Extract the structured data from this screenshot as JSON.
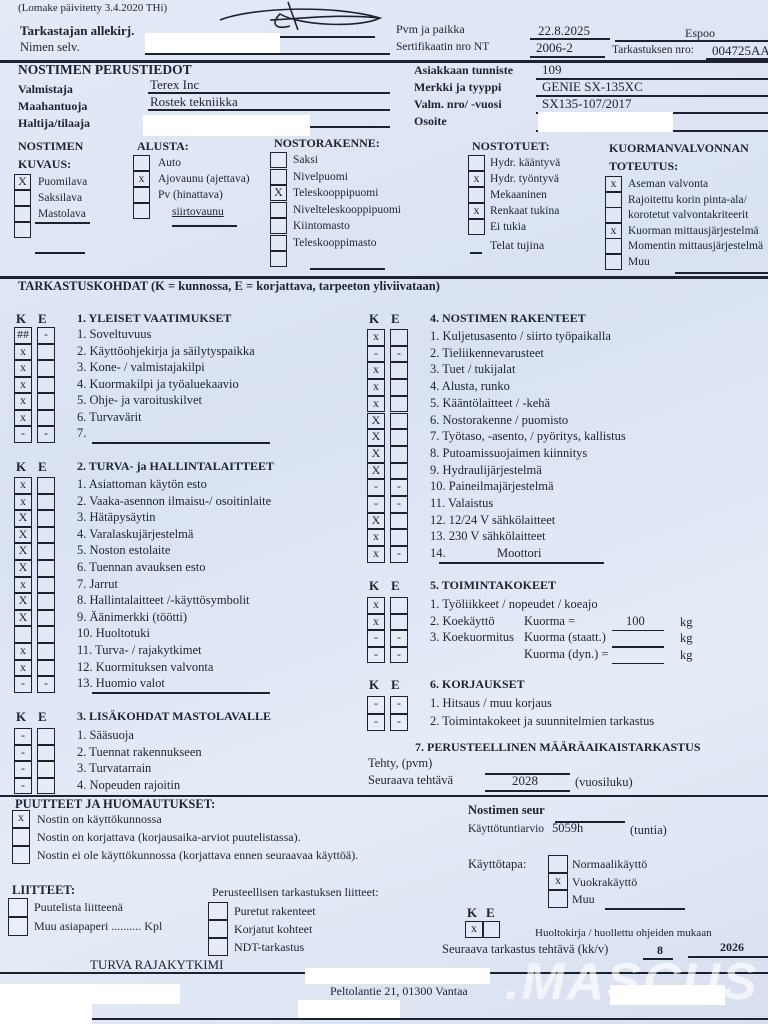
{
  "header": {
    "form_updated": "(Lomake päivitetty 3.4.2020 THi)",
    "signature_label": "Tarkastajan allekirj.",
    "name_label": "Nimen selv.",
    "date_place_label": "Pvm ja paikka",
    "date": "22.8.2025",
    "place": "Espoo",
    "cert_label": "Sertifikaatin nro NT",
    "cert_no": "2006-2",
    "inspection_no_label": "Tarkastuksen nro:",
    "inspection_no": "004725AA"
  },
  "basic": {
    "title": "NOSTIMEN PERUSTIEDOT",
    "manufacturer_label": "Valmistaja",
    "manufacturer": "Terex Inc",
    "importer_label": "Maahantuoja",
    "importer": "Rostek tekniikka",
    "owner_label": "Haltija/tilaaja",
    "customer_id_label": "Asiakkaan tunniste",
    "customer_id": "109",
    "make_label": "Merkki ja tyyppi",
    "make": "GENIE SX-135XC",
    "serial_label": "Valm. nro/ -vuosi",
    "serial": "SX135-107/2017",
    "address_label": "Osoite"
  },
  "groups": [
    {
      "title": [
        "NOSTIMEN",
        "KUVAUS:"
      ],
      "items": [
        {
          "m": "X",
          "l": "Puomilava"
        },
        {
          "m": "",
          "l": "Saksilava"
        },
        {
          "m": "",
          "l": "Mastolava"
        },
        {
          "m": "",
          "l": ""
        }
      ]
    },
    {
      "title": [
        "ALUSTA:"
      ],
      "items": [
        {
          "m": "",
          "l": "Auto"
        },
        {
          "m": "x",
          "l": "Ajovaunu (ajettava)"
        },
        {
          "m": "",
          "l": "Pv (hinattava)"
        },
        {
          "m": "",
          "l": "siirtovaunu"
        }
      ]
    },
    {
      "title": [
        "NOSTORAKENNE:"
      ],
      "items": [
        {
          "m": "",
          "l": "Saksi"
        },
        {
          "m": "",
          "l": "Nivelpuomi"
        },
        {
          "m": "X",
          "l": "Teleskooppipuomi"
        },
        {
          "m": "",
          "l": "Nivelteleskooppipuomi"
        },
        {
          "m": "",
          "l": "Kiintomasto"
        },
        {
          "m": "",
          "l": "Teleskooppimasto"
        },
        {
          "m": "",
          "l": ""
        }
      ]
    },
    {
      "title": [
        "NOSTOTUET:"
      ],
      "items": [
        {
          "m": "",
          "l": "Hydr. kääntyvä"
        },
        {
          "m": "x",
          "l": "Hydr. työntyvä"
        },
        {
          "m": "",
          "l": "Mekaaninen"
        },
        {
          "m": "x",
          "l": "Renkaat tukina"
        },
        {
          "m": "",
          "l": "Ei tukia"
        }
      ],
      "extra": "Telat tujina"
    },
    {
      "title": [
        "KUORMANVALVONNAN",
        "TOTEUTUS:"
      ],
      "items": [
        {
          "m": "x",
          "l": "Aseman valvonta"
        },
        {
          "m": "",
          "l": "Rajoitettu korin pinta-ala/"
        },
        {
          "m": "",
          "l": "korotetut valvontakriteerit"
        },
        {
          "m": "x",
          "l": "Kuorman mittausjärjestelmä"
        },
        {
          "m": "",
          "l": "Momentin mittausjärjestelmä"
        },
        {
          "m": "",
          "l": "Muu"
        }
      ]
    }
  ],
  "inspection_title": "TARKASTUSKOHDAT (K = kunnossa, E = korjattava, tarpeeton yliviivataan)",
  "col_k": "K",
  "col_e": "E",
  "sections": [
    {
      "title": "1. YLEISET VAATIMUKSET",
      "items": [
        {
          "k": "##",
          "e": "-",
          "l": "1. Soveltuvuus"
        },
        {
          "k": "x",
          "e": "",
          "l": "2. Käyttöohjekirja ja säilytyspaikka"
        },
        {
          "k": "x",
          "e": "",
          "l": "3. Kone- / valmistajakilpi"
        },
        {
          "k": "x",
          "e": "",
          "l": "4. Kuormakilpi ja työaluekaavio"
        },
        {
          "k": "x",
          "e": "",
          "l": "5. Ohje- ja varoituskilvet"
        },
        {
          "k": "x",
          "e": "",
          "l": "6. Turvavärit"
        },
        {
          "k": "-",
          "e": "-",
          "l": "7."
        }
      ]
    },
    {
      "title": "2. TURVA- ja HALLINTALAITTEET",
      "items": [
        {
          "k": "x",
          "e": "",
          "l": "1. Asiattoman käytön esto"
        },
        {
          "k": "x",
          "e": "",
          "l": "2. Vaaka-asennon ilmaisu-/ osoitinlaite"
        },
        {
          "k": "X",
          "e": "",
          "l": "3. Hätäpysäytin"
        },
        {
          "k": "X",
          "e": "",
          "l": "4. Varalaskujärjestelmä"
        },
        {
          "k": "X",
          "e": "",
          "l": "5. Noston estolaite"
        },
        {
          "k": "X",
          "e": "",
          "l": "6. Tuennan avauksen esto"
        },
        {
          "k": "x",
          "e": "",
          "l": "7. Jarrut"
        },
        {
          "k": "X",
          "e": "",
          "l": "8. Hallintalaitteet /-käyttösymbolit"
        },
        {
          "k": "X",
          "e": "",
          "l": "9. Äänimerkki (töötti)"
        },
        {
          "k": "",
          "e": "",
          "l": "10. Huoltotuki"
        },
        {
          "k": "x",
          "e": "",
          "l": "11. Turva- / rajakytkimet"
        },
        {
          "k": "x",
          "e": "",
          "l": "12. Kuormituksen valvonta"
        },
        {
          "k": "-",
          "e": "-",
          "l": "13. Huomio valot"
        }
      ]
    },
    {
      "title": "3. LISÄKOHDAT MASTOLAVALLE",
      "items": [
        {
          "k": "-",
          "e": "",
          "l": "1. Sääsuoja"
        },
        {
          "k": "-",
          "e": "",
          "l": "2. Tuennat rakennukseen"
        },
        {
          "k": "-",
          "e": "",
          "l": "3. Turvatarrain"
        },
        {
          "k": "-",
          "e": "",
          "l": "4. Nopeuden rajoitin"
        }
      ]
    },
    {
      "title": "4. NOSTIMEN RAKENTEET",
      "items": [
        {
          "k": "x",
          "e": "",
          "l": "1. Kuljetusasento / siirto työpaikalla"
        },
        {
          "k": "-",
          "e": "-",
          "l": "2. Tieliikennevarusteet"
        },
        {
          "k": "x",
          "e": "",
          "l": "3. Tuet / tukijalat"
        },
        {
          "k": "x",
          "e": "",
          "l": "4. Alusta, runko"
        },
        {
          "k": "x",
          "e": "",
          "l": "5. Kääntölaitteet / -kehä"
        },
        {
          "k": "X",
          "e": "",
          "l": "6. Nostorakenne / puomisto"
        },
        {
          "k": "X",
          "e": "",
          "l": "7. Työtaso, -asento, / pyöritys, kallistus"
        },
        {
          "k": "X",
          "e": "",
          "l": "8. Putoamissuojaimen kiinnitys"
        },
        {
          "k": "X",
          "e": "",
          "l": "9. Hydraulijärjestelmä"
        },
        {
          "k": "-",
          "e": "-",
          "l": "10. Paineilmajärjestelmä"
        },
        {
          "k": "-",
          "e": "-",
          "l": "11. Valaistus"
        },
        {
          "k": "X",
          "e": "",
          "l": "12. 12/24 V sähkölaitteet"
        },
        {
          "k": "x",
          "e": "",
          "l": "13. 230 V sähkölaitteet"
        },
        {
          "k": "x",
          "e": "-",
          "l": "14.",
          "v": "Moottori"
        }
      ]
    },
    {
      "title": "5. TOIMINTAKOKEET",
      "items": [
        {
          "k": "x",
          "e": "",
          "l": "1. Työliikkeet / nopeudet / koeajo"
        },
        {
          "k": "x",
          "e": "",
          "l": "2. Koekäyttö"
        },
        {
          "k": "-",
          "e": "-",
          "l": "3. Koekuormitus"
        },
        {
          "k": "-",
          "e": "-",
          "l": ""
        }
      ]
    },
    {
      "title": "6. KORJAUKSET",
      "items": [
        {
          "k": "-",
          "e": "-",
          "l": "1. Hitsaus / muu korjaus"
        },
        {
          "k": "-",
          "e": "-",
          "l": "2. Toimintakokeet ja suunnitelmien tarkastus"
        }
      ]
    }
  ],
  "loads": [
    {
      "label": "Kuorma =",
      "value": "100",
      "unit": "kg"
    },
    {
      "label": "Kuorma (staatt.)",
      "value": "",
      "unit": "kg"
    },
    {
      "label": "Kuorma (dyn.) =",
      "value": "",
      "unit": "kg"
    }
  ],
  "periodic": {
    "title": "7. PERUSTEELLINEN MÄÄRÄAIKAISTARKASTUS",
    "done_label": "Tehty, (pvm)",
    "next_label": "Seuraava tehtävä",
    "next_value": "2028",
    "next_unit": "(vuosiluku)"
  },
  "remarks": {
    "title": "PUUTTEET JA HUOMAUTUKSET:",
    "items": [
      {
        "m": "x",
        "l": "Nostin on käyttökunnossa"
      },
      {
        "m": "",
        "l": "Nostin on korjattava (korjausaika-arviot puutelistassa)."
      },
      {
        "m": "",
        "l": "Nostin ei ole käyttökunnossa (korjattava ennen seuraavaa käyttöä)."
      }
    ]
  },
  "attachments": {
    "title": "LIITTEET:",
    "items": [
      {
        "m": "",
        "l": "Puutelista liitteenä"
      },
      {
        "m": "",
        "l": "Muu asiapaperi .......... Kpl"
      }
    ]
  },
  "thorough_attachments": {
    "title": "Perusteellisen tarkastuksen liitteet:",
    "items": [
      {
        "m": "",
        "l": "Puretut rakenteet"
      },
      {
        "m": "",
        "l": "Korjatut kohteet"
      },
      {
        "m": "",
        "l": "NDT-tarkastus"
      }
    ]
  },
  "follow": {
    "title": "Nostimen seur",
    "hours_label": "Käyttötuntiarvio",
    "hours": "5059h",
    "hours_unit": "(tuntia)",
    "use_label": "Käyttötapa:",
    "use_items": [
      {
        "m": "",
        "l": "Normaalikäyttö"
      },
      {
        "m": "x",
        "l": "Vuokrakäyttö"
      },
      {
        "m": "",
        "l": "Muu"
      }
    ],
    "service_k": "x",
    "service_e": "",
    "service_label": "Huoltokirja / huollettu ohjeiden mukaan",
    "next_label": "Seuraava tarkastus tehtävä (kk/v)",
    "next_month": "8",
    "next_year": "2026"
  },
  "note": "TURVA RAJAKYTKIMI",
  "footer_address": "Peltolantie 21, 01300 Vantaa",
  "watermark": ".MASCUS"
}
